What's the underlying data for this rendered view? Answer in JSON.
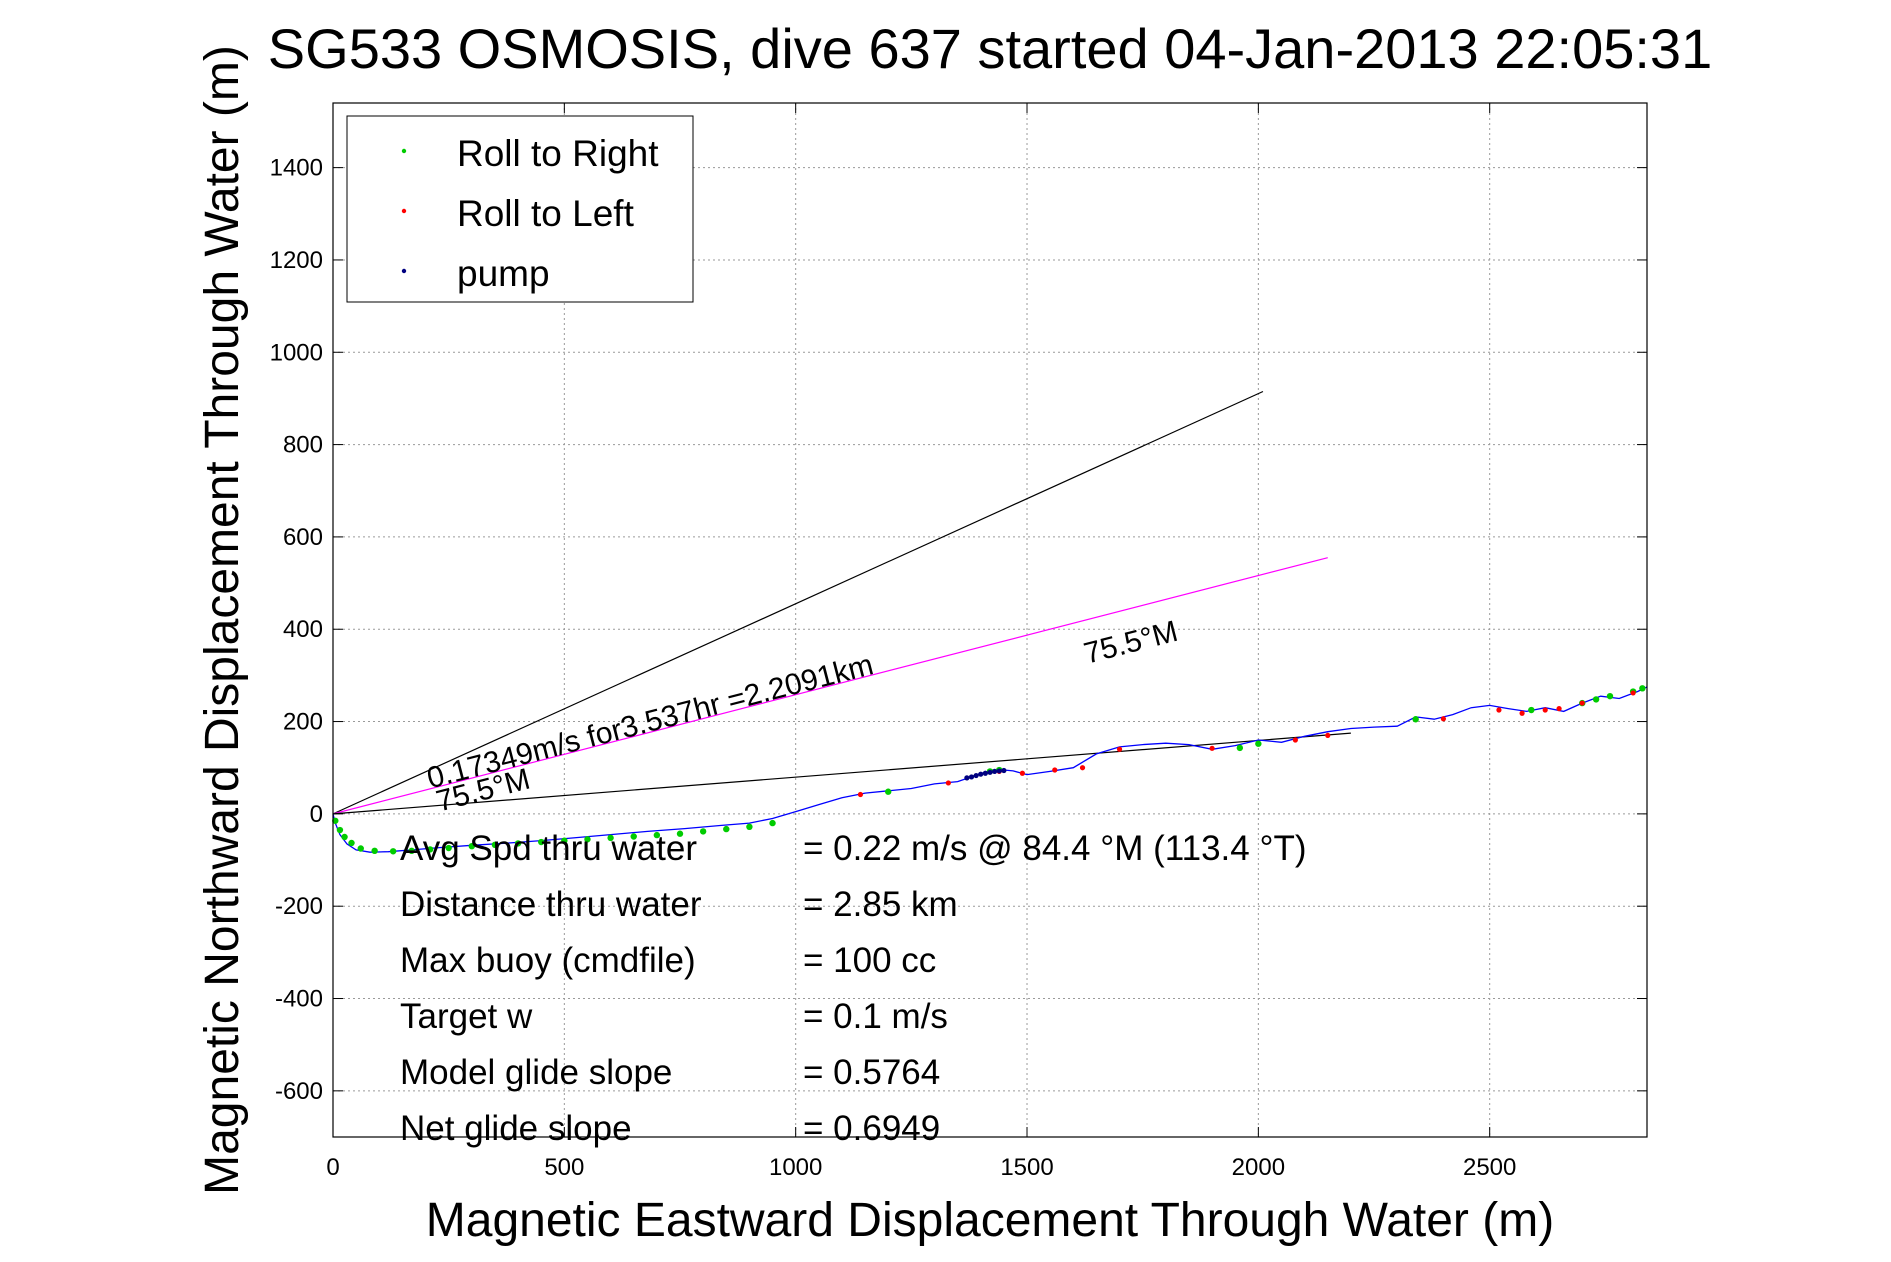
{
  "chart_data": {
    "type": "line",
    "title": "SG533 OSMOSIS, dive 637 started 04-Jan-2013 22:05:31",
    "xlabel": "Magnetic Eastward Displacement Through Water (m)",
    "ylabel": "Magnetic Northward Displacement Through Water (m)",
    "xlim": [
      0,
      2840
    ],
    "ylim": [
      -700,
      1540
    ],
    "xticks": [
      0,
      500,
      1000,
      1500,
      2000,
      2500
    ],
    "yticks": [
      -600,
      -400,
      -200,
      0,
      200,
      400,
      600,
      800,
      1000,
      1200,
      1400
    ],
    "grid": true,
    "legend_position": "top-left",
    "legend": [
      {
        "label": "Roll to Right",
        "color": "#00cc00"
      },
      {
        "label": "Roll to Left",
        "color": "#ff0000"
      },
      {
        "label": "pump",
        "color": "#000080"
      }
    ],
    "track": {
      "color": "#0000ff",
      "x": [
        0,
        5,
        15,
        30,
        50,
        80,
        120,
        170,
        230,
        300,
        380,
        450,
        520,
        600,
        680,
        760,
        840,
        900,
        950,
        1000,
        1050,
        1100,
        1150,
        1200,
        1250,
        1300,
        1350,
        1380,
        1400,
        1430,
        1450,
        1470,
        1500,
        1550,
        1600,
        1650,
        1700,
        1750,
        1800,
        1850,
        1900,
        1950,
        2000,
        2050,
        2100,
        2150,
        2200,
        2250,
        2300,
        2340,
        2380,
        2420,
        2460,
        2500,
        2540,
        2580,
        2620,
        2660,
        2700,
        2740,
        2780,
        2820,
        2840
      ],
      "y": [
        0,
        -20,
        -45,
        -65,
        -78,
        -83,
        -82,
        -78,
        -73,
        -68,
        -63,
        -58,
        -52,
        -45,
        -38,
        -32,
        -25,
        -20,
        -10,
        5,
        20,
        35,
        45,
        50,
        55,
        65,
        70,
        80,
        88,
        92,
        95,
        93,
        85,
        92,
        100,
        130,
        145,
        150,
        153,
        150,
        140,
        148,
        160,
        155,
        168,
        178,
        185,
        188,
        190,
        210,
        205,
        215,
        230,
        235,
        228,
        222,
        230,
        222,
        240,
        255,
        250,
        265,
        275
      ]
    },
    "roll_right_x": [
      5,
      15,
      25,
      40,
      60,
      90,
      130,
      170,
      210,
      250,
      300,
      350,
      400,
      450,
      500,
      550,
      600,
      650,
      700,
      750,
      800,
      850,
      900,
      950,
      1200,
      1420,
      1440,
      1960,
      2000,
      2340,
      2590,
      2700,
      2730,
      2760,
      2810,
      2830
    ],
    "roll_right_y": [
      -15,
      -35,
      -50,
      -63,
      -75,
      -80,
      -81,
      -80,
      -77,
      -74,
      -70,
      -67,
      -64,
      -61,
      -58,
      -55,
      -52,
      -49,
      -46,
      -43,
      -38,
      -33,
      -28,
      -20,
      48,
      92,
      95,
      143,
      152,
      205,
      225,
      240,
      248,
      255,
      265,
      272
    ],
    "roll_left_x": [
      1140,
      1330,
      1440,
      1490,
      1560,
      1620,
      1700,
      1900,
      2080,
      2150,
      2400,
      2520,
      2570,
      2620,
      2650,
      2700,
      2810
    ],
    "roll_left_y": [
      42,
      67,
      92,
      88,
      95,
      100,
      140,
      142,
      160,
      170,
      206,
      225,
      218,
      225,
      228,
      240,
      262
    ],
    "pump_x": [
      1370,
      1380,
      1390,
      1400,
      1410,
      1420,
      1430,
      1440,
      1450
    ],
    "pump_y": [
      78,
      80,
      83,
      86,
      88,
      90,
      92,
      93,
      94
    ],
    "lines": [
      {
        "name": "black-upper",
        "color": "#000000",
        "x": [
          0,
          2010
        ],
        "y": [
          0,
          915
        ]
      },
      {
        "name": "magenta",
        "color": "#ff00ff",
        "x": [
          0,
          2150
        ],
        "y": [
          0,
          555
        ]
      },
      {
        "name": "black-lower",
        "color": "#000000",
        "x": [
          0,
          2200
        ],
        "y": [
          0,
          175
        ]
      }
    ],
    "annotations": [
      {
        "text": "0.17349m/s for3.537hr =2.2091km",
        "x": 210,
        "y": 55,
        "angle": -14.5,
        "size": 30
      },
      {
        "text": "75.5°M",
        "x": 1630,
        "y": 325,
        "angle": -14.5,
        "size": 30
      },
      {
        "text": "75.5°M",
        "x": 230,
        "y": 5,
        "angle": -14.5,
        "size": 30
      }
    ],
    "stats": [
      {
        "label": "Avg Spd thru water",
        "value": "=  0.22 m/s @  84.4 °M (113.4 °T)"
      },
      {
        "label": "Distance thru water",
        "value": "=  2.85 km"
      },
      {
        "label": "Max buoy (cmdfile)",
        "value": "= 100 cc"
      },
      {
        "label": "Target w",
        "value": "= 0.1 m/s"
      },
      {
        "label": "Model glide slope",
        "value": "= 0.5764"
      },
      {
        "label": "Net glide slope",
        "value": "= 0.6949"
      }
    ]
  }
}
